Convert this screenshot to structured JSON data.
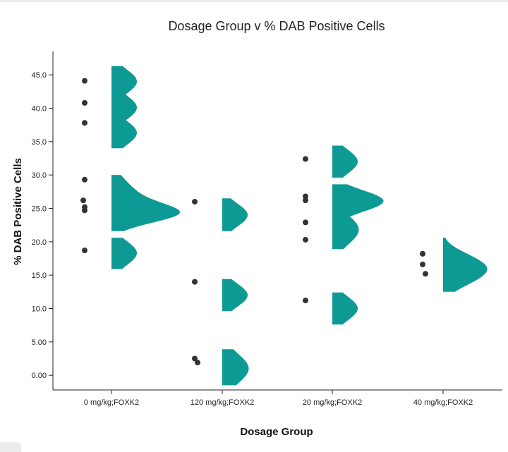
{
  "chart_data": {
    "type": "raincloud",
    "title": "Dosage Group v % DAB Positive Cells",
    "xlabel": "Dosage Group",
    "ylabel": "% DAB Positive Cells",
    "ylim": [
      -2.2,
      48.5
    ],
    "yticks": [
      "0.00",
      "5.00",
      "10.0",
      "15.0",
      "20.0",
      "25.0",
      "30.0",
      "35.0",
      "40.0",
      "45.0"
    ],
    "categories": [
      "0 mg/kg;FOXK2",
      "120 mg/kg;FOXK2",
      "20 mg/kg;FOXK2",
      "40 mg/kg;FOXK2"
    ],
    "colors": {
      "density": "#0e9a94",
      "points": "#333333"
    },
    "groups": [
      {
        "category": "0 mg/kg;FOXK2",
        "points": [
          44.1,
          40.8,
          37.8,
          29.3,
          26.2,
          25.2,
          24.7,
          18.7
        ],
        "density_peaks": [
          {
            "center": 44.0,
            "width": 1.8,
            "height": 0.72,
            "support": [
              41.8,
              46.3
            ]
          },
          {
            "center": 40.1,
            "width": 1.8,
            "height": 0.72,
            "support": [
              37.8,
              42.3
            ]
          },
          {
            "center": 36.3,
            "width": 1.8,
            "height": 0.72,
            "support": [
              34.0,
              38.4
            ]
          },
          {
            "center": 26.5,
            "width": 2.5,
            "height": 0.72,
            "support": [
              21.6,
              30.0
            ]
          },
          {
            "center": 24.2,
            "width": 1.4,
            "height": 1.45,
            "support": [
              21.6,
              30.0
            ]
          },
          {
            "center": 18.3,
            "width": 1.8,
            "height": 0.72,
            "support": [
              15.9,
              20.6
            ]
          }
        ]
      },
      {
        "category": "120 mg/kg;FOXK2",
        "points": [
          26.0,
          14.0,
          2.5,
          1.9
        ],
        "density_peaks": [
          {
            "center": 24.0,
            "width": 1.7,
            "height": 0.72,
            "support": [
              21.6,
              26.5
            ]
          },
          {
            "center": 12.0,
            "width": 1.7,
            "height": 0.72,
            "support": [
              9.6,
              14.4
            ]
          },
          {
            "center": 1.0,
            "width": 2.2,
            "height": 0.75,
            "support": [
              -1.5,
              3.9
            ]
          }
        ]
      },
      {
        "category": "20 mg/kg;FOXK2",
        "points": [
          32.4,
          26.8,
          26.2,
          22.9,
          20.3,
          11.2
        ],
        "density_peaks": [
          {
            "center": 32.0,
            "width": 1.8,
            "height": 0.72,
            "support": [
              29.6,
              34.4
            ]
          },
          {
            "center": 26.1,
            "width": 1.6,
            "height": 1.45,
            "support": [
              23.8,
              28.6
            ]
          },
          {
            "center": 21.8,
            "width": 2.2,
            "height": 0.75,
            "support": [
              18.9,
              24.5
            ]
          },
          {
            "center": 10.0,
            "width": 1.8,
            "height": 0.72,
            "support": [
              7.6,
              12.4
            ]
          }
        ]
      },
      {
        "category": "40 mg/kg;FOXK2",
        "points": [
          18.2,
          16.6,
          15.2
        ],
        "density_peaks": [
          {
            "center": 17.3,
            "width": 1.5,
            "height": 0.72,
            "support": [
              12.5,
              20.6
            ]
          },
          {
            "center": 14.4,
            "width": 1.5,
            "height": 0.72,
            "support": [
              12.5,
              20.6
            ]
          },
          {
            "center": 15.9,
            "width": 1.2,
            "height": 0.35,
            "support": [
              12.5,
              20.6
            ]
          }
        ]
      }
    ]
  }
}
